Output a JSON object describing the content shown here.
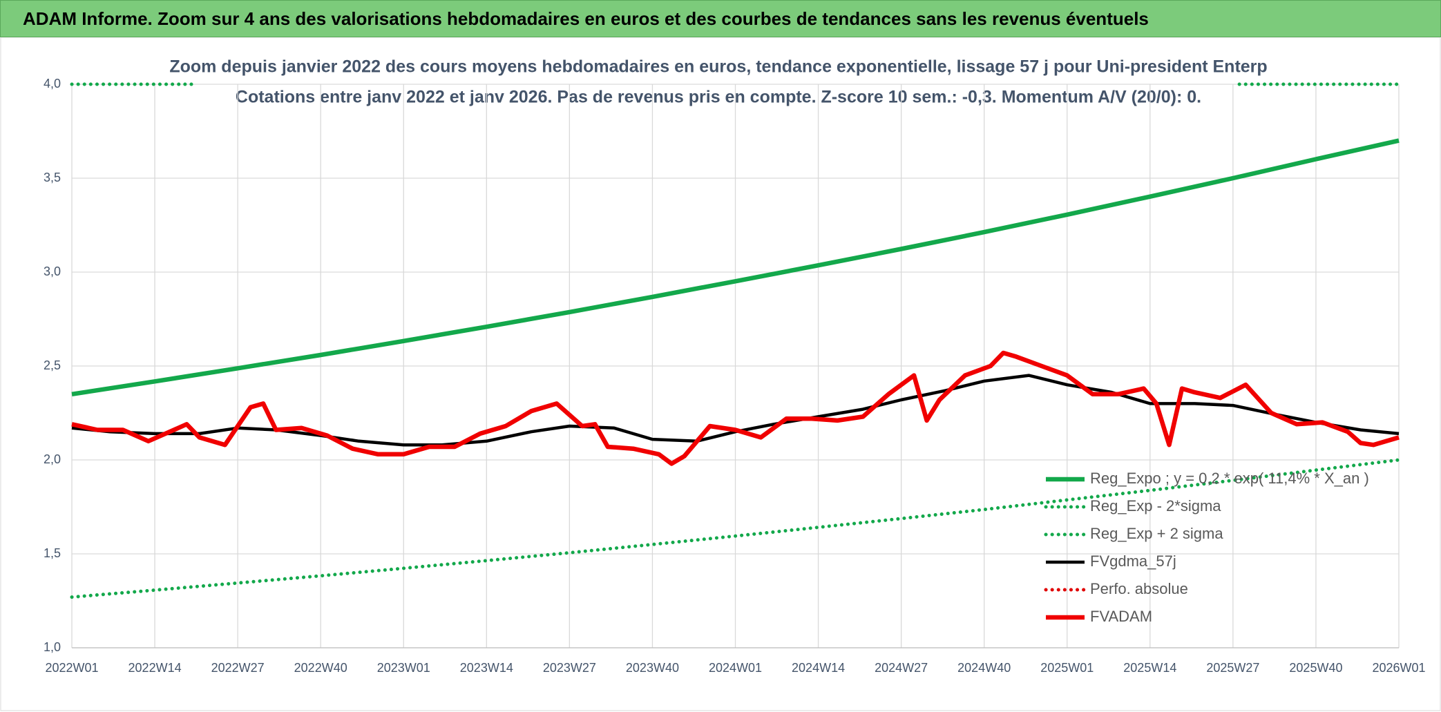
{
  "header": {
    "title": "ADAM Informe. Zoom sur 4 ans des valorisations hebdomadaires en euros et des courbes de tendances sans les revenus éventuels"
  },
  "chart_data": {
    "type": "line",
    "subtitle": [
      "Zoom depuis janvier 2022 des cours moyens hebdomadaires en euros, tendance exponentielle, lissage 57 j pour Uni-president Enterp",
      "Cotations entre janv 2022 et janv 2026. Pas de revenus pris en compte. Z-score 10 sem.: -0,3. Momentum A/V (20/0): 0."
    ],
    "xlim": [
      0,
      208
    ],
    "xticks": [
      {
        "value": 0,
        "label": "2022W01"
      },
      {
        "value": 13,
        "label": "2022W14"
      },
      {
        "value": 26,
        "label": "2022W27"
      },
      {
        "value": 39,
        "label": "2022W40"
      },
      {
        "value": 52,
        "label": "2023W01"
      },
      {
        "value": 65,
        "label": "2023W14"
      },
      {
        "value": 78,
        "label": "2023W27"
      },
      {
        "value": 91,
        "label": "2023W40"
      },
      {
        "value": 104,
        "label": "2024W01"
      },
      {
        "value": 117,
        "label": "2024W14"
      },
      {
        "value": 130,
        "label": "2024W27"
      },
      {
        "value": 143,
        "label": "2024W40"
      },
      {
        "value": 156,
        "label": "2025W01"
      },
      {
        "value": 169,
        "label": "2025W14"
      },
      {
        "value": 182,
        "label": "2025W27"
      },
      {
        "value": 195,
        "label": "2025W40"
      },
      {
        "value": 208,
        "label": "2026W01"
      }
    ],
    "ylim": [
      1,
      4
    ],
    "yticks": [
      {
        "value": 1,
        "label": "1,0"
      },
      {
        "value": 1.5,
        "label": "1,5"
      },
      {
        "value": 2,
        "label": "2,0"
      },
      {
        "value": 2.5,
        "label": "2,5"
      },
      {
        "value": 3,
        "label": "3,0"
      },
      {
        "value": 3.5,
        "label": "3,5"
      },
      {
        "value": 4,
        "label": "4,0"
      }
    ],
    "grid": true,
    "legend": "bottom-right",
    "series": [
      {
        "name": "Reg_Expo ; y = 0,2 * exp( 11,4% *  X_an )",
        "color": "#13a84b",
        "style": "solid",
        "x": [
          0,
          13,
          26,
          39,
          52,
          65,
          78,
          91,
          104,
          117,
          130,
          143,
          156,
          169,
          182,
          195,
          208
        ],
        "values": [
          2.35,
          2.418,
          2.488,
          2.559,
          2.633,
          2.709,
          2.787,
          2.868,
          2.951,
          3.036,
          3.123,
          3.213,
          3.306,
          3.402,
          3.5,
          3.601,
          3.7
        ]
      },
      {
        "name": "Reg_Exp - 2*sigma",
        "color": "#13a84b",
        "style": "dotted",
        "x": [
          0,
          13,
          26,
          39,
          52,
          65,
          78,
          91,
          104,
          117,
          130,
          143,
          156,
          169,
          182,
          195,
          208
        ],
        "values": [
          1.27,
          1.307,
          1.345,
          1.383,
          1.423,
          1.464,
          1.506,
          1.55,
          1.595,
          1.641,
          1.688,
          1.736,
          1.787,
          1.838,
          1.891,
          1.946,
          2.0
        ]
      },
      {
        "name": "Reg_Exp + 2 sigma",
        "color": "#13a84b",
        "style": "dotted",
        "x": [
          0,
          19,
          100,
          183,
          208
        ],
        "values": [
          4,
          4,
          null,
          4,
          4
        ]
      },
      {
        "name": "FVgdma_57j",
        "color": "#000000",
        "style": "solid",
        "x": [
          0,
          6,
          13,
          20,
          26,
          32,
          39,
          45,
          52,
          58,
          65,
          72,
          78,
          85,
          91,
          98,
          104,
          110,
          117,
          124,
          130,
          137,
          143,
          150,
          156,
          163,
          169,
          176,
          182,
          189,
          195,
          202,
          208
        ],
        "values": [
          2.17,
          2.15,
          2.14,
          2.14,
          2.17,
          2.16,
          2.13,
          2.1,
          2.08,
          2.08,
          2.1,
          2.15,
          2.18,
          2.17,
          2.11,
          2.1,
          2.15,
          2.19,
          2.23,
          2.27,
          2.32,
          2.37,
          2.42,
          2.45,
          2.4,
          2.36,
          2.3,
          2.3,
          2.29,
          2.24,
          2.2,
          2.16,
          2.14
        ]
      },
      {
        "name": "Perfo. absolue",
        "color": "#e00000",
        "style": "dotted",
        "x": [],
        "values": []
      },
      {
        "name": "FVADAM",
        "color": "#f00000",
        "style": "solid",
        "x": [
          0,
          4,
          8,
          12,
          16,
          18,
          20,
          24,
          28,
          30,
          32,
          36,
          40,
          44,
          48,
          52,
          56,
          60,
          64,
          68,
          72,
          76,
          80,
          82,
          84,
          88,
          92,
          94,
          96,
          100,
          104,
          108,
          112,
          116,
          120,
          124,
          128,
          132,
          134,
          136,
          140,
          144,
          146,
          148,
          152,
          156,
          160,
          164,
          168,
          170,
          172,
          174,
          176,
          180,
          184,
          188,
          192,
          196,
          200,
          202,
          204,
          208
        ],
        "values": [
          2.19,
          2.16,
          2.16,
          2.1,
          2.16,
          2.19,
          2.12,
          2.08,
          2.28,
          2.3,
          2.16,
          2.17,
          2.13,
          2.06,
          2.03,
          2.03,
          2.07,
          2.07,
          2.14,
          2.18,
          2.26,
          2.3,
          2.18,
          2.19,
          2.07,
          2.06,
          2.03,
          1.98,
          2.02,
          2.18,
          2.16,
          2.12,
          2.22,
          2.22,
          2.21,
          2.23,
          2.35,
          2.45,
          2.21,
          2.32,
          2.45,
          2.5,
          2.57,
          2.55,
          2.5,
          2.45,
          2.35,
          2.35,
          2.38,
          2.3,
          2.08,
          2.38,
          2.36,
          2.33,
          2.4,
          2.25,
          2.19,
          2.2,
          2.15,
          2.09,
          2.08,
          2.12
        ]
      }
    ]
  }
}
